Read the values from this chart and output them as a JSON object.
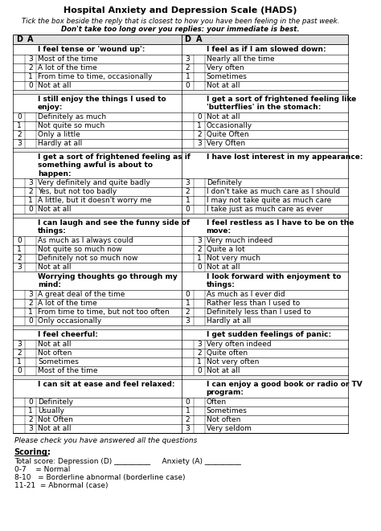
{
  "title": "Hospital Anxiety and Depression Scale (HADS)",
  "subtitle1": "Tick the box beside the reply that is closest to how you have been feeling in the past week.",
  "subtitle2": "Don't take too long over you replies: your immediate is best.",
  "rows": [
    {
      "type": "section_header",
      "left": "I feel tense or 'wound up':",
      "right": "I feel as if I am slowed down:"
    },
    {
      "type": "data",
      "d_left": "",
      "a_left": "3",
      "text_left": "Most of the time",
      "d_right": "3",
      "a_right": "",
      "text_right": "Nearly all the time"
    },
    {
      "type": "data",
      "d_left": "",
      "a_left": "2",
      "text_left": "A lot of the time",
      "d_right": "2",
      "a_right": "",
      "text_right": "Very often"
    },
    {
      "type": "data",
      "d_left": "",
      "a_left": "1",
      "text_left": "From time to time, occasionally",
      "d_right": "1",
      "a_right": "",
      "text_right": "Sometimes"
    },
    {
      "type": "data",
      "d_left": "",
      "a_left": "0",
      "text_left": "Not at all",
      "d_right": "0",
      "a_right": "",
      "text_right": "Not at all"
    },
    {
      "type": "spacer"
    },
    {
      "type": "section_header",
      "left": "I still enjoy the things I used to\nenjoy:",
      "right": "I get a sort of frightened feeling like\n'butterflies' in the stomach:"
    },
    {
      "type": "data",
      "d_left": "0",
      "a_left": "",
      "text_left": "Definitely as much",
      "d_right": "",
      "a_right": "0",
      "text_right": "Not at all"
    },
    {
      "type": "data",
      "d_left": "1",
      "a_left": "",
      "text_left": "Not quite so much",
      "d_right": "",
      "a_right": "1",
      "text_right": "Occasionally"
    },
    {
      "type": "data",
      "d_left": "2",
      "a_left": "",
      "text_left": "Only a little",
      "d_right": "",
      "a_right": "2",
      "text_right": "Quite Often"
    },
    {
      "type": "data",
      "d_left": "3",
      "a_left": "",
      "text_left": "Hardly at all",
      "d_right": "",
      "a_right": "3",
      "text_right": "Very Often"
    },
    {
      "type": "spacer"
    },
    {
      "type": "section_header",
      "left": "I get a sort of frightened feeling as if\nsomething awful is about to\nhappen:",
      "right": "I have lost interest in my appearance:"
    },
    {
      "type": "data",
      "d_left": "",
      "a_left": "3",
      "text_left": "Very definitely and quite badly",
      "d_right": "3",
      "a_right": "",
      "text_right": "Definitely"
    },
    {
      "type": "data",
      "d_left": "",
      "a_left": "2",
      "text_left": "Yes, but not too badly",
      "d_right": "2",
      "a_right": "",
      "text_right": "I don't take as much care as I should"
    },
    {
      "type": "data",
      "d_left": "",
      "a_left": "1",
      "text_left": "A little, but it doesn't worry me",
      "d_right": "1",
      "a_right": "",
      "text_right": "I may not take quite as much care"
    },
    {
      "type": "data",
      "d_left": "",
      "a_left": "0",
      "text_left": "Not at all",
      "d_right": "0",
      "a_right": "",
      "text_right": "I take just as much care as ever"
    },
    {
      "type": "spacer"
    },
    {
      "type": "section_header",
      "left": "I can laugh and see the funny side of\nthings:",
      "right": "I feel restless as I have to be on the\nmove:"
    },
    {
      "type": "data",
      "d_left": "0",
      "a_left": "",
      "text_left": "As much as I always could",
      "d_right": "",
      "a_right": "3",
      "text_right": "Very much indeed"
    },
    {
      "type": "data",
      "d_left": "1",
      "a_left": "",
      "text_left": "Not quite so much now",
      "d_right": "",
      "a_right": "2",
      "text_right": "Quite a lot"
    },
    {
      "type": "data",
      "d_left": "2",
      "a_left": "",
      "text_left": "Definitely not so much now",
      "d_right": "",
      "a_right": "1",
      "text_right": "Not very much"
    },
    {
      "type": "data",
      "d_left": "3",
      "a_left": "",
      "text_left": "Not at all",
      "d_right": "",
      "a_right": "0",
      "text_right": "Not at all"
    },
    {
      "type": "section_header",
      "left": "Worrying thoughts go through my\nmind:",
      "right": "I look forward with enjoyment to\nthings:"
    },
    {
      "type": "data",
      "d_left": "",
      "a_left": "3",
      "text_left": "A great deal of the time",
      "d_right": "0",
      "a_right": "",
      "text_right": "As much as I ever did"
    },
    {
      "type": "data",
      "d_left": "",
      "a_left": "2",
      "text_left": "A lot of the time",
      "d_right": "1",
      "a_right": "",
      "text_right": "Rather less than I used to"
    },
    {
      "type": "data",
      "d_left": "",
      "a_left": "1",
      "text_left": "From time to time, but not too often",
      "d_right": "2",
      "a_right": "",
      "text_right": "Definitely less than I used to"
    },
    {
      "type": "data",
      "d_left": "",
      "a_left": "0",
      "text_left": "Only occasionally",
      "d_right": "3",
      "a_right": "",
      "text_right": "Hardly at all"
    },
    {
      "type": "spacer"
    },
    {
      "type": "section_header",
      "left": "I feel cheerful:",
      "right": "I get sudden feelings of panic:"
    },
    {
      "type": "data",
      "d_left": "3",
      "a_left": "",
      "text_left": "Not at all",
      "d_right": "",
      "a_right": "3",
      "text_right": "Very often indeed"
    },
    {
      "type": "data",
      "d_left": "2",
      "a_left": "",
      "text_left": "Not often",
      "d_right": "",
      "a_right": "2",
      "text_right": "Quite often"
    },
    {
      "type": "data",
      "d_left": "1",
      "a_left": "",
      "text_left": "Sometimes",
      "d_right": "",
      "a_right": "1",
      "text_right": "Not very often"
    },
    {
      "type": "data",
      "d_left": "0",
      "a_left": "",
      "text_left": "Most of the time",
      "d_right": "",
      "a_right": "0",
      "text_right": "Not at all"
    },
    {
      "type": "spacer"
    },
    {
      "type": "section_header",
      "left": "I can sit at ease and feel relaxed:",
      "right": "I can enjoy a good book or radio or TV\nprogram:"
    },
    {
      "type": "data",
      "d_left": "",
      "a_left": "0",
      "text_left": "Definitely",
      "d_right": "0",
      "a_right": "",
      "text_right": "Often"
    },
    {
      "type": "data",
      "d_left": "",
      "a_left": "1",
      "text_left": "Usually",
      "d_right": "1",
      "a_right": "",
      "text_right": "Sometimes"
    },
    {
      "type": "data",
      "d_left": "",
      "a_left": "2",
      "text_left": "Not Often",
      "d_right": "2",
      "a_right": "",
      "text_right": "Not often"
    },
    {
      "type": "data",
      "d_left": "",
      "a_left": "3",
      "text_left": "Not at all",
      "d_right": "3",
      "a_right": "",
      "text_right": "Very seldom"
    }
  ],
  "footer": "Please check you have answered all the questions",
  "scoring_title": "Scoring:",
  "scoring_lines": [
    "Total score: Depression (D) __________     Anxiety (A) __________",
    "0-7    = Normal",
    "8-10   = Borderline abnormal (borderline case)",
    "11-21  = Abnormal (case)"
  ],
  "bg_color": "#ffffff",
  "grid_color": "#000000",
  "text_color": "#000000"
}
